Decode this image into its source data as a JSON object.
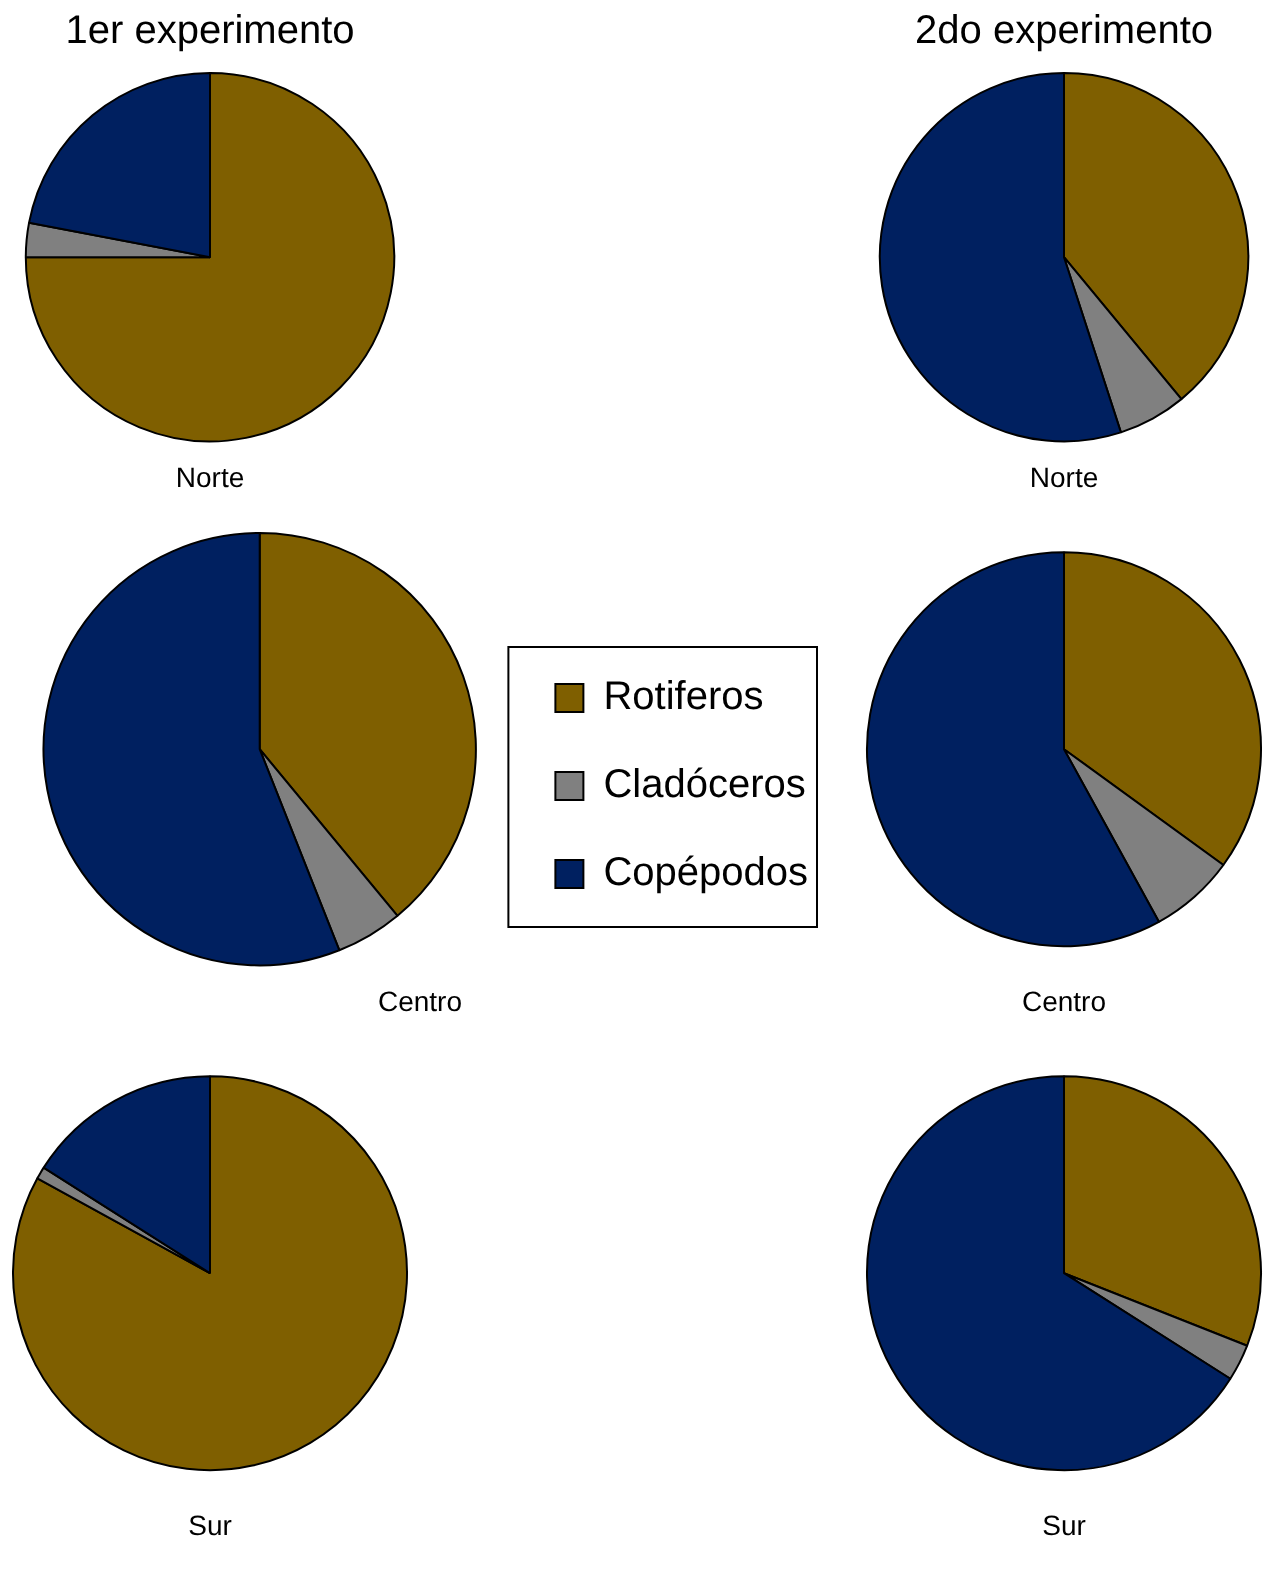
{
  "chart_data": [
    {
      "type": "pie",
      "subtitle": "1er experimento",
      "title": "Norte",
      "categories": [
        null,
        null,
        null
      ],
      "values": [
        75,
        3,
        22
      ],
      "colors": [
        "#7f5f00",
        "#808080",
        "#002060"
      ]
    },
    {
      "type": "pie",
      "subtitle": "2do experimento",
      "title": "Norte",
      "categories": [
        null,
        null,
        null
      ],
      "values": [
        39,
        6,
        55
      ],
      "colors": [
        "#7f5f00",
        "#808080",
        "#002060"
      ]
    },
    {
      "type": "pie",
      "title": "Centro",
      "categories": [
        "Rotiferos",
        "Cladóceros",
        "Copépodos"
      ],
      "values": [
        39,
        5,
        56
      ],
      "colors": [
        "#7f5f00",
        "#808080",
        "#002060"
      ],
      "legend": "right"
    },
    {
      "type": "pie",
      "title": "Centro",
      "categories": [
        null,
        null,
        null
      ],
      "values": [
        35,
        7,
        58
      ],
      "colors": [
        "#7f5f00",
        "#808080",
        "#002060"
      ]
    },
    {
      "type": "pie",
      "title": "Sur",
      "categories": [
        null,
        null,
        null
      ],
      "values": [
        83,
        1,
        16
      ],
      "colors": [
        "#7f5f00",
        "#808080",
        "#002060"
      ]
    },
    {
      "type": "pie",
      "title": "Sur",
      "categories": [
        null,
        null,
        null
      ],
      "values": [
        31,
        3,
        66
      ],
      "colors": [
        "#7f5f00",
        "#808080",
        "#002060"
      ]
    }
  ]
}
